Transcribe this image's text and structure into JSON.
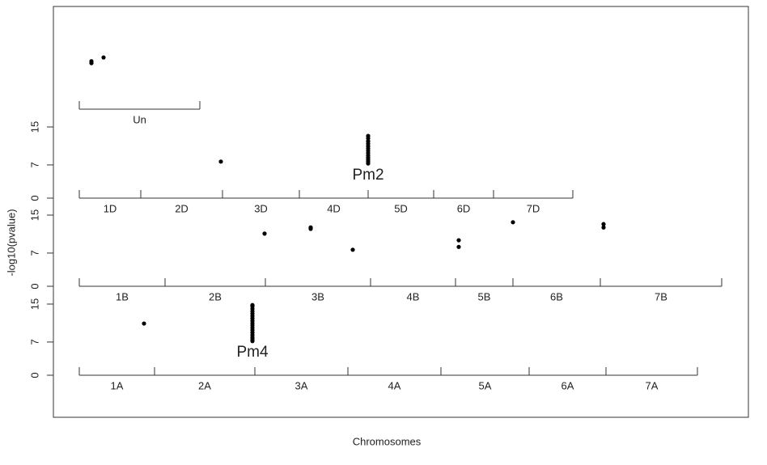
{
  "chart_data": {
    "type": "manhattan",
    "y_label": "-log10(pvalue)",
    "x_label": "Chromosomes",
    "xlim": [
      0,
      860
    ],
    "color": "#000000",
    "panels": [
      {
        "chromosomes": [
          "Un"
        ],
        "boundaries": [
          32,
          181
        ],
        "ylim": [
          0,
          15
        ],
        "yticks": [],
        "x": [
          47,
          47,
          62
        ],
        "values": [
          10.1,
          9.7,
          10.9
        ]
      },
      {
        "chromosomes": [
          "1D",
          "2D",
          "3D",
          "4D",
          "5D",
          "6D",
          "7D"
        ],
        "boundaries": [
          32,
          108,
          209,
          304,
          389,
          470,
          544,
          642
        ],
        "ylim": [
          0,
          15
        ],
        "yticks": [
          0,
          7,
          15
        ],
        "annotation": "Pm2",
        "x": [
          207,
          389,
          389,
          389,
          389,
          389,
          389,
          389,
          389,
          389,
          389,
          389,
          389,
          389
        ],
        "values": [
          7.7,
          7.3,
          7.7,
          8.1,
          8.5,
          9.0,
          9.5,
          10.0,
          10.5,
          11.0,
          11.5,
          12.0,
          12.6,
          13.1
        ]
      },
      {
        "chromosomes": [
          "1B",
          "2B",
          "3B",
          "4B",
          "5B",
          "6B",
          "7B"
        ],
        "boundaries": [
          32,
          138,
          262,
          392,
          497,
          568,
          676,
          826
        ],
        "ylim": [
          0,
          15
        ],
        "yticks": [
          0,
          7,
          15
        ],
        "x": [
          261,
          318,
          318,
          370,
          501,
          501,
          568,
          680,
          680
        ],
        "values": [
          11.1,
          12.4,
          12.1,
          7.7,
          9.7,
          8.3,
          13.5,
          13.1,
          12.4
        ]
      },
      {
        "chromosomes": [
          "1A",
          "2A",
          "3A",
          "4A",
          "5A",
          "6A",
          "7A"
        ],
        "boundaries": [
          32,
          125,
          249,
          364,
          479,
          588,
          683,
          796
        ],
        "ylim": [
          0,
          15
        ],
        "yticks": [
          0,
          7,
          15
        ],
        "annotation": "Pm4",
        "x": [
          112,
          246,
          246,
          246,
          246,
          246,
          246,
          246,
          246,
          246,
          246,
          246,
          246,
          246,
          246,
          246,
          246,
          246
        ],
        "values": [
          10.9,
          7.2,
          7.6,
          8.0,
          8.5,
          9.0,
          9.5,
          10.0,
          10.5,
          11.0,
          11.5,
          12.0,
          12.5,
          13.0,
          13.5,
          14.0,
          14.5,
          14.8
        ]
      }
    ]
  }
}
